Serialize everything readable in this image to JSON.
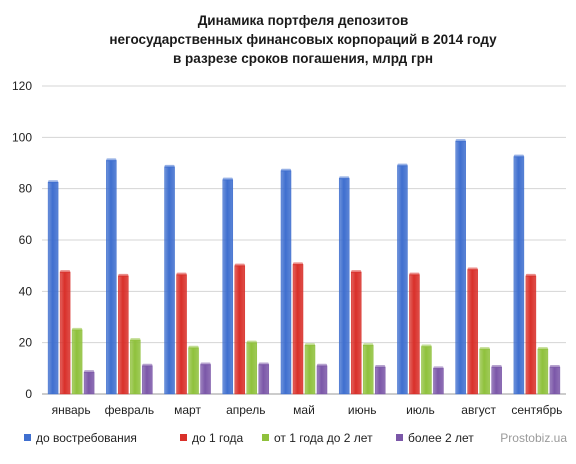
{
  "chart_data": {
    "type": "bar",
    "title": [
      "Динамика портфеля депозитов",
      "негосударственных финансовых корпораций в 2014 году",
      "в разрезе сроков погашения, млрд грн"
    ],
    "xlabel": "",
    "ylabel": "",
    "ylim": [
      0,
      120
    ],
    "yticks": [
      "0",
      "20",
      "40",
      "60",
      "80",
      "100",
      "120"
    ],
    "grid": true,
    "legend_position": "bottom",
    "categories": [
      "январь",
      "февраль",
      "март",
      "апрель",
      "май",
      "июнь",
      "июль",
      "август",
      "сентябрь"
    ],
    "series": [
      {
        "name": "до востребования",
        "color": "#3f6fcf",
        "values": [
          82.5,
          91,
          88.5,
          83.5,
          87,
          84,
          89,
          98.5,
          92.5
        ]
      },
      {
        "name": "до 1 года",
        "color": "#d9302a",
        "values": [
          47.5,
          46,
          46.5,
          50,
          50.5,
          47.5,
          46.5,
          48.5,
          46
        ]
      },
      {
        "name": "от 1 года до 2 лет",
        "color": "#8fc13c",
        "values": [
          25,
          21,
          18,
          20,
          19,
          19,
          18.5,
          17.5,
          17.5
        ]
      },
      {
        "name": "более 2 лет",
        "color": "#7b57a8",
        "values": [
          8.5,
          11,
          11.5,
          11.5,
          11,
          10.5,
          10,
          10.5,
          10.5
        ]
      }
    ]
  },
  "watermark": "Prostobiz.ua"
}
